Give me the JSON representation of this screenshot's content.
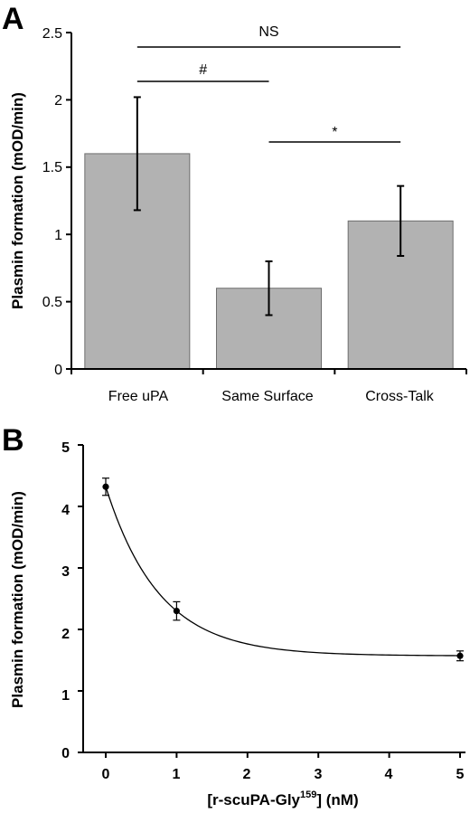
{
  "chart_data": [
    {
      "type": "bar",
      "panel_label": "A",
      "categories": [
        "Free uPA",
        "Same Surface",
        "Cross-Talk"
      ],
      "values": [
        1.6,
        0.6,
        1.1
      ],
      "errors": [
        0.42,
        0.2,
        0.26
      ],
      "ylabel": "Plasmin formation (mOD/min)",
      "ylim": [
        0,
        2.5
      ],
      "yticks": [
        "0",
        "0.5",
        "1",
        "1.5",
        "2",
        "2.5"
      ],
      "bar_color": "#b2b2b2",
      "significance": [
        {
          "from": 0,
          "to": 2,
          "label": "NS"
        },
        {
          "from": 0,
          "to": 1,
          "label": "#"
        },
        {
          "from": 1,
          "to": 2,
          "label": "*"
        }
      ]
    },
    {
      "type": "scatter",
      "panel_label": "B",
      "x": [
        0,
        1,
        5
      ],
      "y": [
        4.32,
        2.3,
        1.57
      ],
      "y_errors": [
        0.14,
        0.15,
        0.08
      ],
      "fit_curve": true,
      "xlabel_main": "[r-scuPA-Gly",
      "xlabel_sup": "159",
      "xlabel_end": "] (nM)",
      "ylabel": "Plasmin formation (mOD/min)",
      "xlim": [
        0,
        5
      ],
      "ylim": [
        0,
        5
      ],
      "xticks": [
        "0",
        "1",
        "2",
        "3",
        "4",
        "5"
      ],
      "yticks": [
        "0",
        "1",
        "2",
        "3",
        "4",
        "5"
      ]
    }
  ]
}
